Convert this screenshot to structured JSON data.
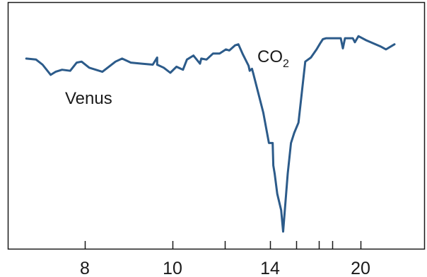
{
  "chart_data": {
    "type": "line",
    "title": "",
    "xlabel": "",
    "ylabel": "",
    "x_tick_labels": [
      "8",
      "10",
      "14",
      "20"
    ],
    "annotations": {
      "series_label": "Venus",
      "absorption_label": {
        "main": "CO",
        "subscript": "2"
      }
    },
    "series": [
      {
        "color": "#2c5b8a",
        "points": [
          [
            6.2,
            0.865
          ],
          [
            6.5,
            0.86
          ],
          [
            6.7,
            0.835
          ],
          [
            6.95,
            0.785
          ],
          [
            7.1,
            0.8
          ],
          [
            7.3,
            0.81
          ],
          [
            7.55,
            0.805
          ],
          [
            7.75,
            0.845
          ],
          [
            7.9,
            0.85
          ],
          [
            8.1,
            0.82
          ],
          [
            8.4,
            0.8
          ],
          [
            8.7,
            0.85
          ],
          [
            8.85,
            0.865
          ],
          [
            9.05,
            0.845
          ],
          [
            9.3,
            0.84
          ],
          [
            9.55,
            0.835
          ],
          [
            9.65,
            0.87
          ],
          [
            9.65,
            0.835
          ],
          [
            9.8,
            0.82
          ],
          [
            9.95,
            0.795
          ],
          [
            10.15,
            0.825
          ],
          [
            10.4,
            0.81
          ],
          [
            10.55,
            0.86
          ],
          [
            10.8,
            0.88
          ],
          [
            11.05,
            0.84
          ],
          [
            11.1,
            0.865
          ],
          [
            11.3,
            0.86
          ],
          [
            11.55,
            0.89
          ],
          [
            11.8,
            0.89
          ],
          [
            12.05,
            0.91
          ],
          [
            12.2,
            0.905
          ],
          [
            12.45,
            0.93
          ],
          [
            12.6,
            0.935
          ],
          [
            12.8,
            0.885
          ],
          [
            13.05,
            0.83
          ],
          [
            13.1,
            0.805
          ],
          [
            13.2,
            0.815
          ],
          [
            13.25,
            0.795
          ],
          [
            13.7,
            0.6
          ],
          [
            13.95,
            0.45
          ],
          [
            14.2,
            0.45
          ],
          [
            14.25,
            0.34
          ],
          [
            14.35,
            0.3
          ],
          [
            14.55,
            0.2
          ],
          [
            14.85,
            0.12
          ],
          [
            15.0,
            0.015
          ],
          [
            15.35,
            0.3
          ],
          [
            15.6,
            0.45
          ],
          [
            15.85,
            0.5
          ],
          [
            16.1,
            0.55
          ],
          [
            16.25,
            0.7
          ],
          [
            16.4,
            0.85
          ],
          [
            16.65,
            0.87
          ],
          [
            16.9,
            0.91
          ],
          [
            17.1,
            0.94
          ],
          [
            17.3,
            0.96
          ],
          [
            17.55,
            0.965
          ],
          [
            17.8,
            0.965
          ],
          [
            18.1,
            0.965
          ],
          [
            18.35,
            0.965
          ],
          [
            18.6,
            0.965
          ],
          [
            18.75,
            0.915
          ],
          [
            18.9,
            0.965
          ],
          [
            19.15,
            0.965
          ],
          [
            19.45,
            0.965
          ],
          [
            19.6,
            0.945
          ],
          [
            19.85,
            0.975
          ],
          [
            20.1,
            0.955
          ],
          [
            20.35,
            0.925
          ],
          [
            20.45,
            0.91
          ],
          [
            20.6,
            0.935
          ]
        ]
      }
    ],
    "grid": false,
    "legend": "none"
  }
}
